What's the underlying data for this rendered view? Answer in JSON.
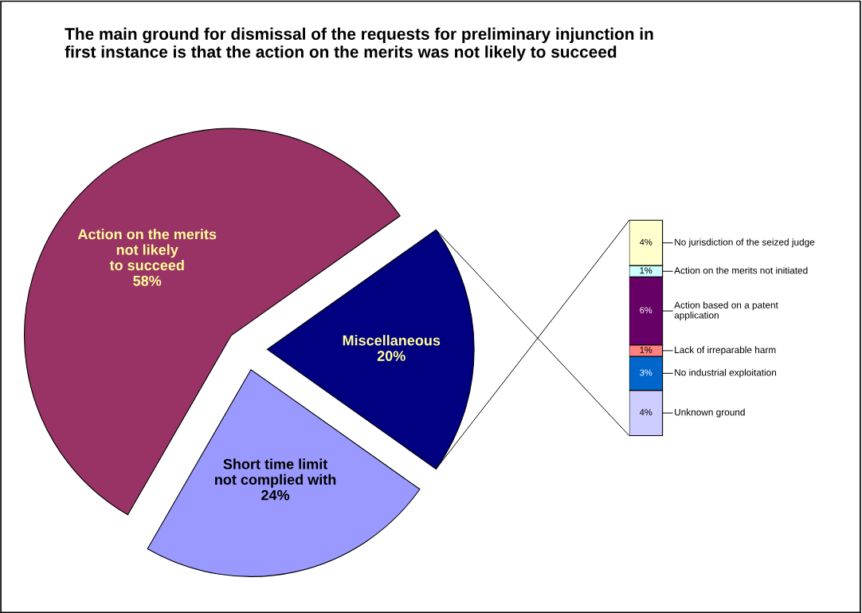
{
  "chart_data": [
    {
      "type": "pie",
      "title": "The main ground for dismissal of the requests for preliminary injunction in\nfirst instance is that the action on the merits was not likely to succeed",
      "categories": [
        "Action on the merits\nnot likely\nto succeed",
        "Short time limit\nnot complied with",
        "Miscellaneous"
      ],
      "values": [
        58,
        24,
        20
      ],
      "value_labels": [
        "58%",
        "24%",
        "20%"
      ],
      "colors": [
        "#993366",
        "#9999ff",
        "#000080"
      ]
    },
    {
      "type": "bar",
      "stacked": true,
      "categories": [
        null
      ],
      "legend": "right",
      "series": [
        {
          "name": "Unknown ground",
          "color": "#ccccff",
          "values": [
            4
          ],
          "value_labels": [
            "4%"
          ]
        },
        {
          "name": "No industrial exploitation",
          "color": "#0066cc",
          "values": [
            3
          ],
          "value_labels": [
            "3%"
          ]
        },
        {
          "name": "Lack of irreparable harm",
          "color": "#ff8080",
          "values": [
            1
          ],
          "value_labels": [
            "1%"
          ]
        },
        {
          "name": "Action based on a patent\napplication",
          "color": "#660066",
          "values": [
            6
          ],
          "value_labels": [
            "6%"
          ]
        },
        {
          "name": "Action on the merits not initiated",
          "color": "#ccffff",
          "values": [
            1
          ],
          "value_labels": [
            "1%"
          ]
        },
        {
          "name": "No jurisdiction of the seized judge",
          "color": "#ffffcc",
          "values": [
            4
          ],
          "value_labels": [
            "4%"
          ]
        }
      ]
    }
  ]
}
